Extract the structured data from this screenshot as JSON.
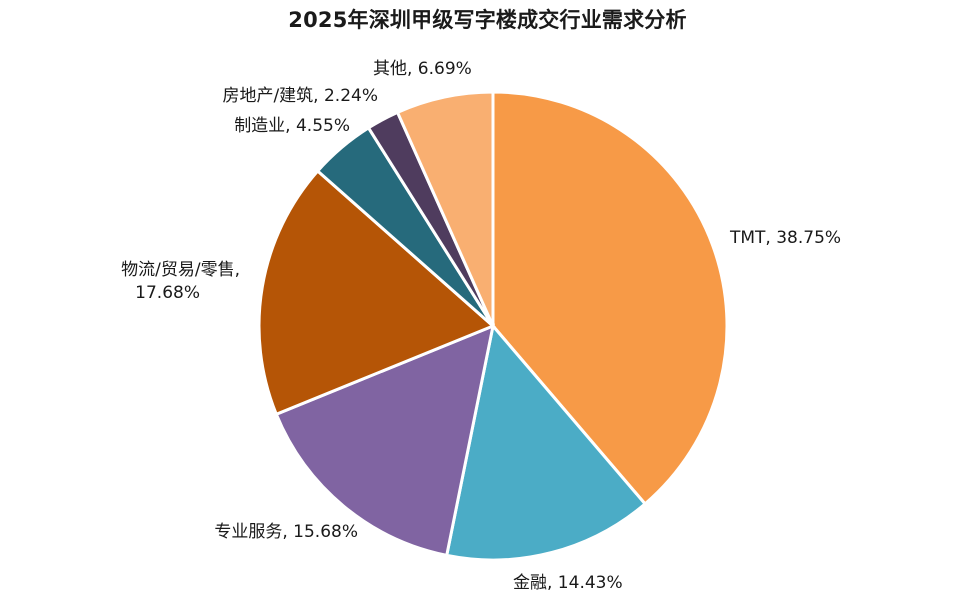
{
  "chart_data": {
    "type": "pie",
    "title": "2025年深圳甲级写字楼成交行业需求分析",
    "categories": [
      "TMT",
      "金融",
      "专业服务",
      "物流/贸易/零售",
      "制造业",
      "房地产/建筑",
      "其他"
    ],
    "values": [
      38.75,
      14.43,
      15.68,
      17.68,
      4.55,
      2.24,
      6.69
    ],
    "labels": [
      {
        "lines": [
          "TMT, 38.75%"
        ]
      },
      {
        "lines": [
          "金融, 14.43%"
        ]
      },
      {
        "lines": [
          "专业服务, 15.68%"
        ]
      },
      {
        "lines": [
          "物流/贸易/零售,",
          "17.68%"
        ]
      },
      {
        "lines": [
          "制造业, 4.55%"
        ]
      },
      {
        "lines": [
          "房地产/建筑, 2.24%"
        ]
      },
      {
        "lines": [
          "其他, 6.69%"
        ]
      }
    ],
    "colors": [
      "#F79A47",
      "#4BACC6",
      "#8064A2",
      "#B55506",
      "#266A7C",
      "#4F3C5E",
      "#F9AF71"
    ],
    "start_angle": "12 o'clock",
    "direction": "clockwise",
    "legend": "none"
  }
}
